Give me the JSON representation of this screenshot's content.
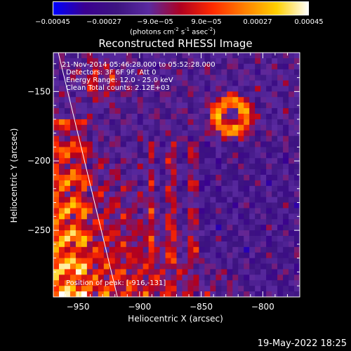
{
  "chart_data": {
    "type": "heatmap",
    "title": "Reconstructed RHESSI Image",
    "xlabel": "Heliocentric X (arcsec)",
    "ylabel": "Heliocentric Y (arcsec)",
    "xlim": [
      -970,
      -770
    ],
    "ylim": [
      -298,
      -122
    ],
    "x_ticks": [
      -950,
      -900,
      -850,
      -800
    ],
    "y_ticks": [
      -150,
      -200,
      -250
    ],
    "colorbar": {
      "range": [
        -0.00045,
        0.00045
      ],
      "tick_labels": [
        "-0.00045",
        "-0.00027",
        "-9.0e-05",
        "9.0e-05",
        "0.00027",
        "0.00045"
      ],
      "unit_line1": "(photons cm",
      "unit_exp1": "-2",
      "unit_s": " s",
      "unit_exp2": "-1",
      "unit_asec": " asec",
      "unit_exp3": "-2",
      "unit_close": ")",
      "colormap": [
        "#0000ff",
        "#3a0090",
        "#3d1480",
        "#5a2aa0",
        "#b00020",
        "#ff2a00",
        "#ff8000",
        "#ffd000",
        "#ffffff"
      ]
    },
    "annotations": {
      "time_range": "21-Nov-2014 05:46:28.000 to 05:52:28.000",
      "detectors": "Detectors: 3F 6F 9F, Att 0",
      "energy": "Energy Range: 12.0 - 25.0 keV",
      "clean": "Clean    Total counts: 2.12E+03",
      "position": "Position of peak: [-916,-131]"
    },
    "limb_line": [
      [
        -966,
        -122
      ],
      [
        -918,
        -298
      ]
    ],
    "peak_position": [
      -916,
      -131
    ]
  },
  "footer": {
    "timestamp": "19-May-2022 18:25"
  }
}
